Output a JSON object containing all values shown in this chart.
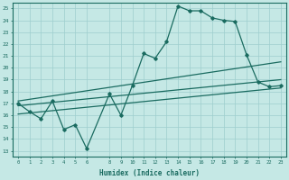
{
  "xlabel": "Humidex (Indice chaleur)",
  "bg_color": "#c5e8e5",
  "grid_color": "#9ecece",
  "line_color": "#1a6b60",
  "xlim": [
    -0.5,
    23.5
  ],
  "ylim": [
    12.5,
    25.5
  ],
  "xticks": [
    0,
    1,
    2,
    3,
    4,
    5,
    6,
    8,
    9,
    10,
    11,
    12,
    13,
    14,
    15,
    16,
    17,
    18,
    19,
    20,
    21,
    22,
    23
  ],
  "yticks": [
    13,
    14,
    15,
    16,
    17,
    18,
    19,
    20,
    21,
    22,
    23,
    24,
    25
  ],
  "zigzag": {
    "x": [
      0,
      1,
      2,
      3,
      4,
      5,
      6,
      8,
      9,
      10,
      11,
      12,
      13,
      14,
      15,
      16,
      17,
      18,
      19,
      20,
      21,
      22,
      23
    ],
    "y": [
      17.0,
      16.3,
      15.7,
      17.2,
      14.8,
      15.2,
      13.2,
      17.8,
      16.0,
      18.5,
      21.2,
      20.8,
      22.2,
      25.2,
      24.8,
      24.8,
      24.2,
      24.0,
      23.9,
      21.1,
      18.8,
      18.4,
      18.5
    ]
  },
  "trend1": {
    "x": [
      0,
      23
    ],
    "y": [
      17.2,
      20.5
    ]
  },
  "trend2": {
    "x": [
      0,
      23
    ],
    "y": [
      16.8,
      19.0
    ]
  },
  "trend3": {
    "x": [
      0,
      23
    ],
    "y": [
      16.1,
      18.3
    ]
  }
}
